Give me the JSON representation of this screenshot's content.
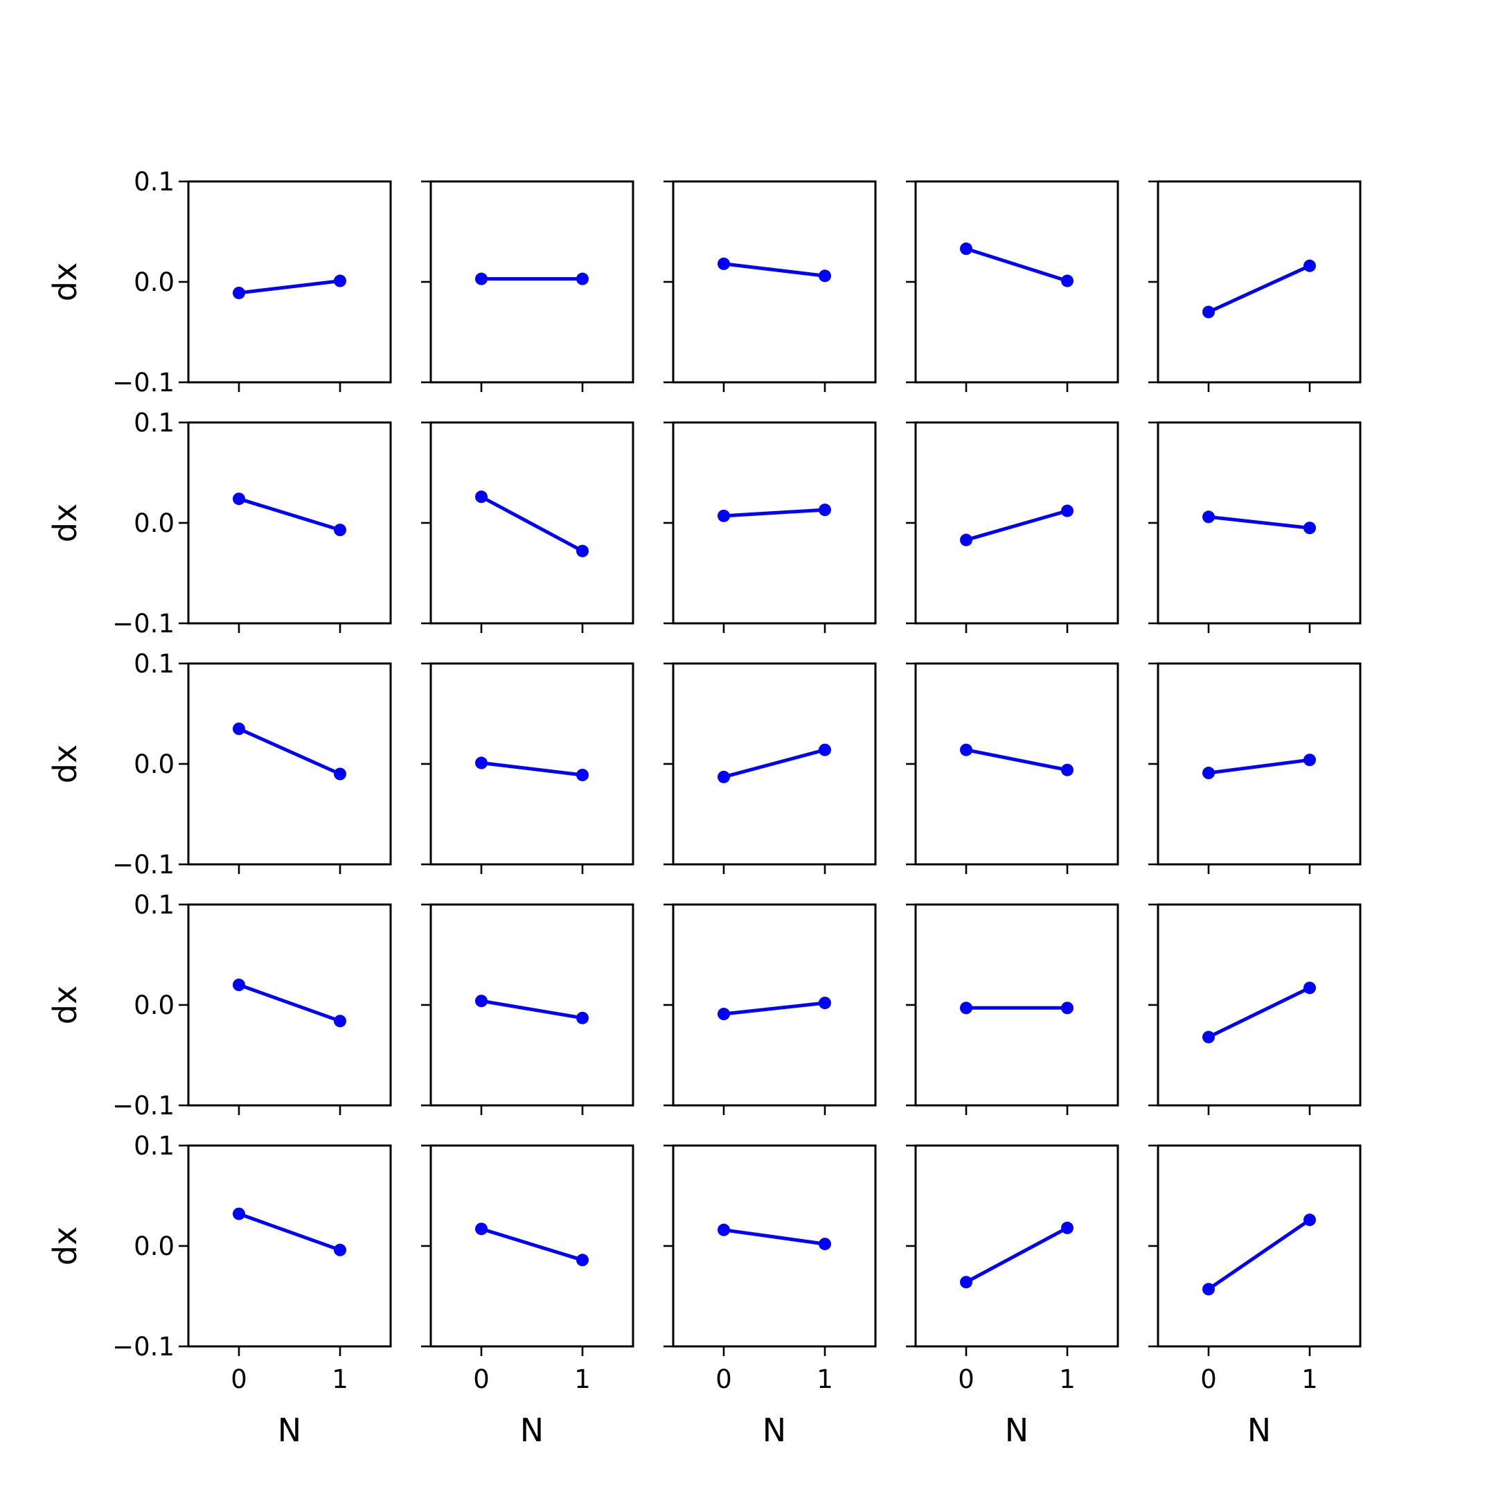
{
  "figure": {
    "colors": {
      "series": "#0000ff",
      "axes": "#000000",
      "background": "#ffffff"
    }
  },
  "chart_data": {
    "type": "line",
    "layout": "grid",
    "rows": 5,
    "cols": 5,
    "shared_x": true,
    "shared_y": true,
    "xlabel": "N",
    "ylabel": "dx",
    "xlim": [
      -0.5,
      1.5
    ],
    "ylim": [
      -0.1,
      0.1
    ],
    "xticks": [
      0,
      1
    ],
    "xtick_labels": [
      "0",
      "1"
    ],
    "yticks": [
      0.1,
      0.0,
      -0.1
    ],
    "ytick_labels": [
      "0.1",
      "0.0",
      "−0.1"
    ],
    "grid": false,
    "marker": "circle",
    "x": [
      0,
      1
    ],
    "panels": [
      {
        "row": 0,
        "col": 0,
        "y": [
          -0.011,
          0.001
        ]
      },
      {
        "row": 0,
        "col": 1,
        "y": [
          0.003,
          0.003
        ]
      },
      {
        "row": 0,
        "col": 2,
        "y": [
          0.018,
          0.006
        ]
      },
      {
        "row": 0,
        "col": 3,
        "y": [
          0.033,
          0.001
        ]
      },
      {
        "row": 0,
        "col": 4,
        "y": [
          -0.03,
          0.016
        ]
      },
      {
        "row": 1,
        "col": 0,
        "y": [
          0.024,
          -0.007
        ]
      },
      {
        "row": 1,
        "col": 1,
        "y": [
          0.026,
          -0.028
        ]
      },
      {
        "row": 1,
        "col": 2,
        "y": [
          0.007,
          0.013
        ]
      },
      {
        "row": 1,
        "col": 3,
        "y": [
          -0.017,
          0.012
        ]
      },
      {
        "row": 1,
        "col": 4,
        "y": [
          0.006,
          -0.005
        ]
      },
      {
        "row": 2,
        "col": 0,
        "y": [
          0.035,
          -0.01
        ]
      },
      {
        "row": 2,
        "col": 1,
        "y": [
          0.001,
          -0.011
        ]
      },
      {
        "row": 2,
        "col": 2,
        "y": [
          -0.013,
          0.014
        ]
      },
      {
        "row": 2,
        "col": 3,
        "y": [
          0.014,
          -0.006
        ]
      },
      {
        "row": 2,
        "col": 4,
        "y": [
          -0.009,
          0.004
        ]
      },
      {
        "row": 3,
        "col": 0,
        "y": [
          0.02,
          -0.016
        ]
      },
      {
        "row": 3,
        "col": 1,
        "y": [
          0.004,
          -0.013
        ]
      },
      {
        "row": 3,
        "col": 2,
        "y": [
          -0.009,
          0.002
        ]
      },
      {
        "row": 3,
        "col": 3,
        "y": [
          -0.003,
          -0.003
        ]
      },
      {
        "row": 3,
        "col": 4,
        "y": [
          -0.032,
          0.017
        ]
      },
      {
        "row": 4,
        "col": 0,
        "y": [
          0.032,
          -0.004
        ]
      },
      {
        "row": 4,
        "col": 1,
        "y": [
          0.017,
          -0.014
        ]
      },
      {
        "row": 4,
        "col": 2,
        "y": [
          0.016,
          0.002
        ]
      },
      {
        "row": 4,
        "col": 3,
        "y": [
          -0.036,
          0.018
        ]
      },
      {
        "row": 4,
        "col": 4,
        "y": [
          -0.043,
          0.026
        ]
      }
    ]
  }
}
